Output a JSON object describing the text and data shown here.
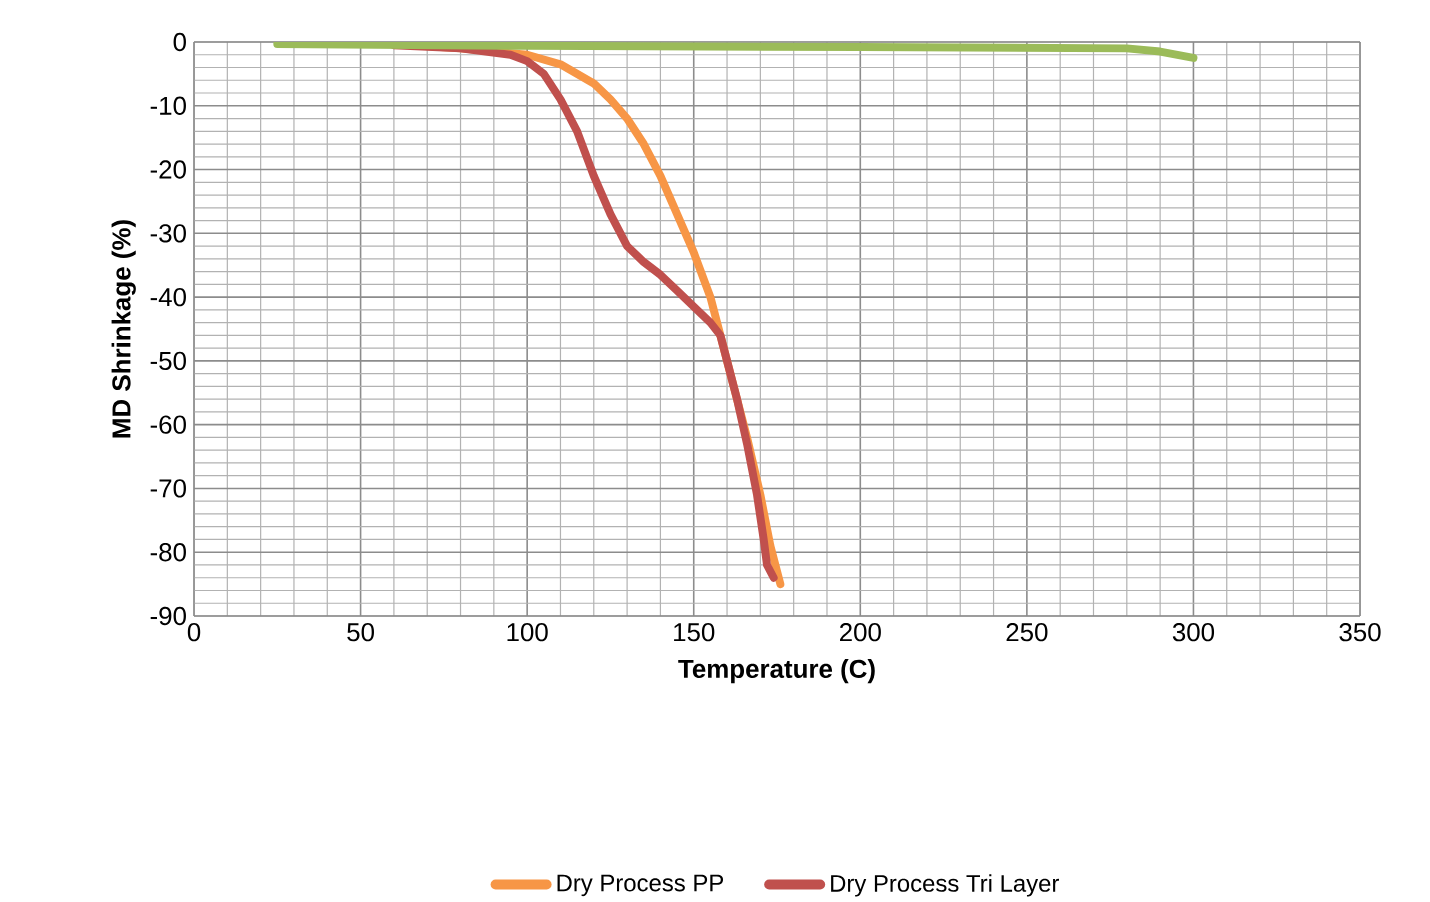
{
  "chart_data": {
    "type": "line",
    "xlabel": "Temperature (C)",
    "ylabel": "MD Shrinkage (%)",
    "xlim": [
      0,
      350
    ],
    "ylim": [
      -90,
      0
    ],
    "xticks": [
      0,
      50,
      100,
      150,
      200,
      250,
      300,
      350
    ],
    "yticks": [
      -90,
      -80,
      -70,
      -60,
      -50,
      -40,
      -30,
      -20,
      -10,
      0
    ],
    "grid": true,
    "legend": "bottom",
    "marker": "none",
    "line_style": "solid",
    "series": [
      {
        "name": "Dry Process PP",
        "color": "#f79646",
        "x": [
          60,
          80,
          100,
          110,
          120,
          125,
          130,
          135,
          140,
          145,
          150,
          155,
          158,
          162,
          166,
          170,
          173,
          176
        ],
        "values": [
          -0.3,
          -1,
          -2,
          -3.5,
          -6.5,
          -9,
          -12,
          -16,
          -21,
          -27,
          -33,
          -40,
          -46,
          -54,
          -62,
          -71,
          -79,
          -85
        ]
      },
      {
        "name": "Dry Process Tri Layer",
        "color": "#c0504d",
        "x": [
          60,
          80,
          95,
          100,
          105,
          110,
          115,
          120,
          125,
          130,
          135,
          140,
          145,
          150,
          155,
          158,
          160,
          163,
          166,
          169,
          171,
          172,
          174
        ],
        "values": [
          -0.5,
          -1,
          -2,
          -3,
          -5,
          -9,
          -14,
          -21,
          -27,
          -32,
          -34.5,
          -36.5,
          -39,
          -41.5,
          -44,
          -46,
          -50,
          -56,
          -63,
          -71,
          -78,
          -82,
          -84
        ]
      },
      {
        "color": "#9bbb59",
        "x": [
          25,
          100,
          200,
          280,
          290,
          300
        ],
        "values": [
          -0.3,
          -0.6,
          -0.8,
          -1,
          -1.5,
          -2.5
        ]
      }
    ]
  }
}
